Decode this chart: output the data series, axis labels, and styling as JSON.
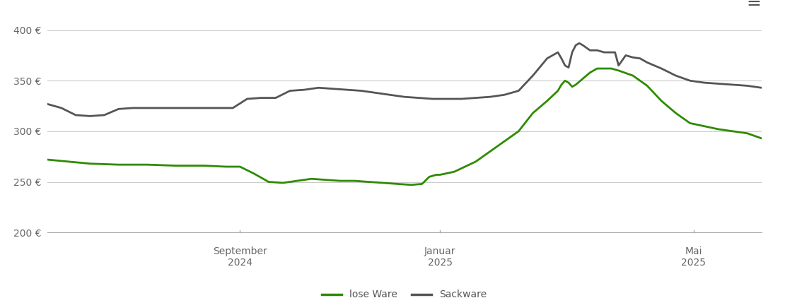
{
  "ylim": [
    200,
    415
  ],
  "yticks": [
    200,
    250,
    300,
    350,
    400
  ],
  "ytick_labels": [
    "200 €",
    "250 €",
    "300 €",
    "350 €",
    "400 €"
  ],
  "background_color": "#ffffff",
  "grid_color": "#cccccc",
  "line_color_lose": "#2e8b00",
  "line_color_sack": "#555555",
  "legend_labels": [
    "lose Ware",
    "Sackware"
  ],
  "x_tick_positions": [
    0.27,
    0.55,
    0.905
  ],
  "x_tick_labels_top": [
    "September",
    "Januar",
    "Mai"
  ],
  "x_tick_labels_bot": [
    "2024",
    "2025",
    "2025"
  ],
  "lose_ware_x": [
    0.0,
    0.03,
    0.06,
    0.1,
    0.14,
    0.18,
    0.22,
    0.25,
    0.27,
    0.29,
    0.31,
    0.33,
    0.35,
    0.37,
    0.39,
    0.41,
    0.43,
    0.45,
    0.47,
    0.49,
    0.51,
    0.525,
    0.535,
    0.545,
    0.55,
    0.57,
    0.6,
    0.63,
    0.66,
    0.68,
    0.7,
    0.715,
    0.72,
    0.725,
    0.73,
    0.735,
    0.74,
    0.75,
    0.76,
    0.77,
    0.78,
    0.79,
    0.8,
    0.82,
    0.84,
    0.86,
    0.88,
    0.9,
    0.92,
    0.94,
    0.96,
    0.98,
    1.0
  ],
  "lose_ware_y": [
    272,
    270,
    268,
    267,
    267,
    266,
    266,
    265,
    265,
    258,
    250,
    249,
    251,
    253,
    252,
    251,
    251,
    250,
    249,
    248,
    247,
    248,
    255,
    257,
    257,
    260,
    270,
    285,
    300,
    318,
    330,
    340,
    346,
    350,
    348,
    344,
    346,
    352,
    358,
    362,
    362,
    362,
    360,
    355,
    345,
    330,
    318,
    308,
    305,
    302,
    300,
    298,
    293
  ],
  "sack_ware_x": [
    0.0,
    0.02,
    0.04,
    0.06,
    0.08,
    0.1,
    0.12,
    0.14,
    0.18,
    0.22,
    0.26,
    0.28,
    0.3,
    0.32,
    0.34,
    0.36,
    0.38,
    0.4,
    0.42,
    0.44,
    0.46,
    0.48,
    0.5,
    0.52,
    0.54,
    0.56,
    0.58,
    0.6,
    0.62,
    0.64,
    0.66,
    0.68,
    0.7,
    0.715,
    0.72,
    0.725,
    0.73,
    0.735,
    0.74,
    0.745,
    0.75,
    0.76,
    0.77,
    0.78,
    0.795,
    0.8,
    0.81,
    0.82,
    0.83,
    0.84,
    0.86,
    0.88,
    0.9,
    0.92,
    0.94,
    0.96,
    0.98,
    1.0
  ],
  "sack_ware_y": [
    327,
    323,
    316,
    315,
    316,
    322,
    323,
    323,
    323,
    323,
    323,
    332,
    333,
    333,
    340,
    341,
    343,
    342,
    341,
    340,
    338,
    336,
    334,
    333,
    332,
    332,
    332,
    333,
    334,
    336,
    340,
    355,
    372,
    378,
    372,
    365,
    363,
    378,
    385,
    387,
    385,
    380,
    380,
    378,
    378,
    365,
    375,
    373,
    372,
    368,
    362,
    355,
    350,
    348,
    347,
    346,
    345,
    343
  ]
}
